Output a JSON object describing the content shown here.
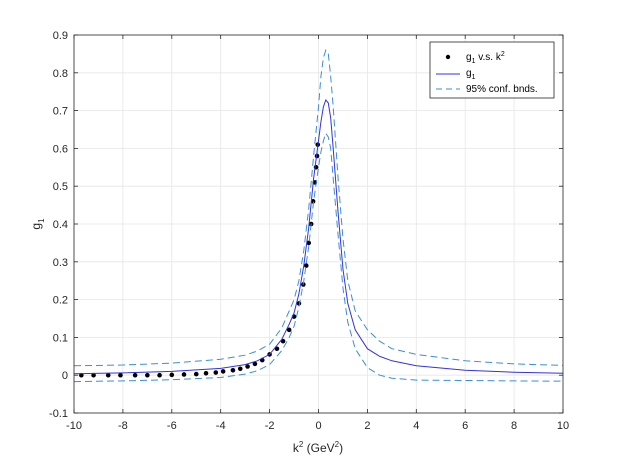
{
  "chart_data": {
    "type": "line",
    "xlabel": {
      "base": "k",
      "sup": "2",
      "unit_prefix": " (GeV",
      "unit_sup": "2",
      "unit_suffix": ")"
    },
    "ylabel": {
      "base": "g",
      "sub": "1"
    },
    "xlim": [
      -10,
      10
    ],
    "ylim": [
      -0.1,
      0.9
    ],
    "xticks": [
      -10,
      -8,
      -6,
      -4,
      -2,
      0,
      2,
      4,
      6,
      8,
      10
    ],
    "yticks": [
      -0.1,
      0,
      0.1,
      0.2,
      0.3,
      0.4,
      0.5,
      0.6,
      0.7,
      0.8,
      0.9
    ],
    "xtick_labels": [
      "-10",
      "-8",
      "-6",
      "-4",
      "-2",
      "0",
      "2",
      "4",
      "6",
      "8",
      "10"
    ],
    "ytick_labels": [
      "-0.1",
      "0",
      "0.1",
      "0.2",
      "0.3",
      "0.4",
      "0.5",
      "0.6",
      "0.7",
      "0.8",
      "0.9"
    ],
    "grid": true,
    "legend_position": "top-right",
    "series": [
      {
        "name": "g1 v.s. k2",
        "kind": "scatter",
        "color": "#000000",
        "x": [
          -9.7,
          -9.2,
          -8.6,
          -8.1,
          -7.5,
          -7.0,
          -6.5,
          -6.0,
          -5.5,
          -5.0,
          -4.6,
          -4.2,
          -3.9,
          -3.5,
          -3.2,
          -2.9,
          -2.6,
          -2.3,
          -2.0,
          -1.7,
          -1.45,
          -1.2,
          -1.0,
          -0.8,
          -0.62,
          -0.5,
          -0.4,
          -0.3,
          -0.22,
          -0.15,
          -0.1,
          -0.06,
          -0.03
        ],
        "y": [
          0.0,
          0.0,
          0.0,
          0.0,
          0.0,
          0.0,
          0.0,
          0.001,
          0.002,
          0.003,
          0.005,
          0.007,
          0.01,
          0.013,
          0.017,
          0.023,
          0.03,
          0.04,
          0.055,
          0.07,
          0.09,
          0.12,
          0.155,
          0.19,
          0.24,
          0.29,
          0.35,
          0.4,
          0.46,
          0.51,
          0.55,
          0.58,
          0.61
        ]
      },
      {
        "name": "g1",
        "kind": "line",
        "color": "#3333dd",
        "x": [
          -10,
          -8,
          -6,
          -4,
          -3,
          -2.5,
          -2,
          -1.5,
          -1.2,
          -1.0,
          -0.8,
          -0.6,
          -0.4,
          -0.2,
          0,
          0.1,
          0.2,
          0.3,
          0.4,
          0.5,
          0.6,
          0.8,
          1.0,
          1.2,
          1.5,
          2,
          2.5,
          3,
          4,
          6,
          8,
          10
        ],
        "y": [
          0.004,
          0.006,
          0.01,
          0.018,
          0.028,
          0.038,
          0.055,
          0.095,
          0.135,
          0.165,
          0.215,
          0.29,
          0.39,
          0.52,
          0.62,
          0.67,
          0.71,
          0.728,
          0.72,
          0.68,
          0.6,
          0.43,
          0.28,
          0.19,
          0.12,
          0.07,
          0.05,
          0.038,
          0.025,
          0.013,
          0.008,
          0.005
        ]
      },
      {
        "name": "95% conf. bnds.",
        "kind": "dashed",
        "color": "#3a8fd6",
        "x": [
          -10,
          -8,
          -6,
          -4,
          -3,
          -2.5,
          -2,
          -1.5,
          -1.2,
          -1.0,
          -0.8,
          -0.6,
          -0.4,
          -0.2,
          0,
          0.1,
          0.2,
          0.3,
          0.4,
          0.5,
          0.6,
          0.8,
          1.0,
          1.2,
          1.5,
          2,
          2.5,
          3,
          4,
          6,
          8,
          10
        ],
        "y": [
          0.025,
          0.027,
          0.032,
          0.042,
          0.053,
          0.064,
          0.082,
          0.125,
          0.17,
          0.2,
          0.25,
          0.33,
          0.44,
          0.58,
          0.71,
          0.79,
          0.84,
          0.86,
          0.85,
          0.79,
          0.71,
          0.52,
          0.36,
          0.25,
          0.17,
          0.12,
          0.09,
          0.07,
          0.055,
          0.038,
          0.03,
          0.026
        ]
      },
      {
        "name": "",
        "kind": "dashed",
        "color": "#3a8fd6",
        "x": [
          -10,
          -8,
          -6,
          -4,
          -3,
          -2.5,
          -2,
          -1.5,
          -1.2,
          -1.0,
          -0.8,
          -0.6,
          -0.4,
          -0.2,
          0,
          0.1,
          0.2,
          0.3,
          0.4,
          0.5,
          0.6,
          0.8,
          1.0,
          1.2,
          1.5,
          2,
          2.5,
          3,
          4,
          6,
          8,
          10
        ],
        "y": [
          -0.017,
          -0.015,
          -0.012,
          -0.006,
          0.003,
          0.012,
          0.028,
          0.065,
          0.1,
          0.13,
          0.18,
          0.25,
          0.34,
          0.46,
          0.55,
          0.59,
          0.62,
          0.64,
          0.63,
          0.6,
          0.52,
          0.37,
          0.23,
          0.14,
          0.07,
          0.02,
          0.0,
          -0.008,
          -0.013,
          -0.014,
          -0.015,
          -0.016
        ]
      }
    ],
    "legend": [
      {
        "marker": "dot",
        "base": "g",
        "sub": "1",
        "middle": " v.s. k",
        "sup": "2"
      },
      {
        "marker": "line",
        "base": "g",
        "sub": "1"
      },
      {
        "marker": "dash",
        "text": "95% conf. bnds."
      }
    ]
  }
}
